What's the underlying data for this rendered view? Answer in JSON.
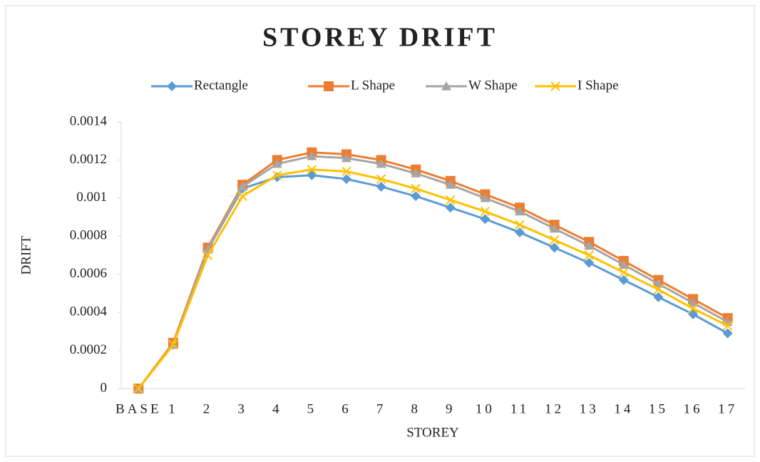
{
  "chart_data": {
    "type": "line",
    "title": "STOREY DRIFT",
    "categories": [
      "BASE",
      "1",
      "2",
      "3",
      "4",
      "5",
      "6",
      "7",
      "8",
      "9",
      "10",
      "11",
      "12",
      "13",
      "14",
      "15",
      "16",
      "17"
    ],
    "series": [
      {
        "name": "Rectangle",
        "color": "#5b9bd5",
        "marker": "diamond",
        "values": [
          0,
          0.00023,
          0.00073,
          0.00105,
          0.00111,
          0.00112,
          0.0011,
          0.00106,
          0.00101,
          0.00095,
          0.00089,
          0.00082,
          0.00074,
          0.00066,
          0.00057,
          0.00048,
          0.00039,
          0.00029
        ]
      },
      {
        "name": "L Shape",
        "color": "#ed7d31",
        "marker": "square",
        "values": [
          0,
          0.00024,
          0.00074,
          0.00107,
          0.0012,
          0.00124,
          0.00123,
          0.0012,
          0.00115,
          0.00109,
          0.00102,
          0.00095,
          0.00086,
          0.00077,
          0.00067,
          0.00057,
          0.00047,
          0.00037
        ]
      },
      {
        "name": "W Shape",
        "color": "#a5a5a5",
        "marker": "triangle",
        "values": [
          0,
          0.00023,
          0.00073,
          0.00106,
          0.00118,
          0.00122,
          0.00121,
          0.00118,
          0.00113,
          0.00107,
          0.001,
          0.00093,
          0.00084,
          0.00075,
          0.00065,
          0.00055,
          0.00045,
          0.00035
        ]
      },
      {
        "name": "I Shape",
        "color": "#ffc000",
        "marker": "x",
        "values": [
          0,
          0.00023,
          0.0007,
          0.00101,
          0.00112,
          0.00115,
          0.00114,
          0.0011,
          0.00105,
          0.00099,
          0.00093,
          0.00086,
          0.00078,
          0.0007,
          0.00061,
          0.00052,
          0.00042,
          0.00033
        ]
      }
    ],
    "xlabel": "STOREY",
    "ylabel": "DRIFT",
    "ylim": [
      0,
      0.0014
    ],
    "yticks": [
      0,
      0.0002,
      0.0004,
      0.0006,
      0.0008,
      0.001,
      0.0012,
      0.0014
    ],
    "grid": false,
    "legend": "top"
  }
}
